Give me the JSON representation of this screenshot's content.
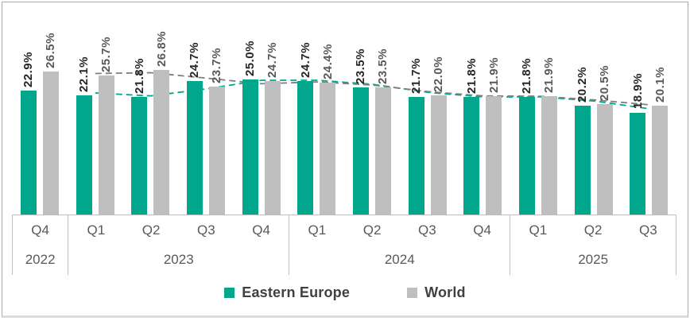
{
  "chart_data": {
    "type": "bar",
    "title": "",
    "categories": [
      "Q4",
      "Q1",
      "Q2",
      "Q3",
      "Q4",
      "Q1",
      "Q2",
      "Q3",
      "Q4",
      "Q1",
      "Q2",
      "Q3"
    ],
    "year_groups": [
      {
        "label": "2022",
        "quarters": [
          "Q4"
        ]
      },
      {
        "label": "2023",
        "quarters": [
          "Q1",
          "Q2",
          "Q3",
          "Q4"
        ]
      },
      {
        "label": "2024",
        "quarters": [
          "Q1",
          "Q2",
          "Q3",
          "Q4"
        ]
      },
      {
        "label": "2025",
        "quarters": [
          "Q1",
          "Q2",
          "Q3"
        ]
      }
    ],
    "series": [
      {
        "name": "Eastern Europe",
        "color": "#00A78C",
        "values": [
          22.9,
          22.1,
          21.8,
          24.7,
          25.0,
          24.7,
          23.5,
          21.7,
          21.8,
          21.8,
          20.2,
          18.9
        ],
        "labels": [
          "22.9%",
          "22.1%",
          "21.8%",
          "24.7%",
          "25.0%",
          "24.7%",
          "23.5%",
          "21.7%",
          "21.8%",
          "21.8%",
          "20.2%",
          "18.9%"
        ]
      },
      {
        "name": "World",
        "color": "#BFBFBF",
        "values": [
          26.5,
          25.7,
          26.8,
          23.7,
          24.7,
          24.4,
          23.5,
          22.0,
          21.9,
          21.9,
          20.5,
          20.1
        ],
        "labels": [
          "26.5%",
          "25.7%",
          "26.8%",
          "23.7%",
          "24.7%",
          "24.4%",
          "23.5%",
          "22.0%",
          "21.9%",
          "21.9%",
          "20.5%",
          "20.1%"
        ]
      }
    ],
    "trendlines": {
      "type": "moving_average",
      "period": 2,
      "colors": [
        "#00A78C",
        "#7F7F7F"
      ],
      "dashed": true
    },
    "value_suffix": "%",
    "ylim": [
      0,
      38
    ],
    "grid": false,
    "legend_position": "bottom",
    "axis_line_color": "#BFBFBF",
    "label_color_series1": "#262626",
    "label_color_series2": "#595959"
  }
}
